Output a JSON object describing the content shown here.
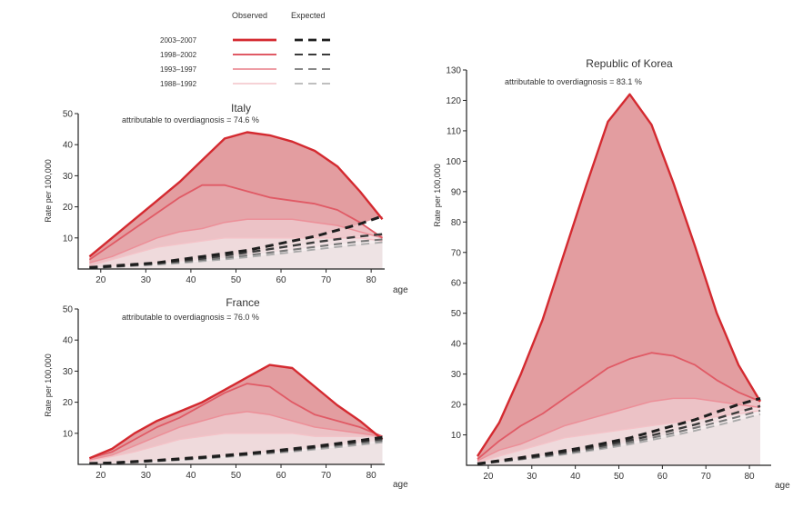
{
  "legend": {
    "observed_label": "Observed",
    "expected_label": "Expected",
    "periods": [
      "2003–2007",
      "1998–2002",
      "1993–1997",
      "1988–1992"
    ],
    "colors": [
      "#d42a30",
      "#e05a65",
      "#ec8f98",
      "#f4c3c8"
    ],
    "expected_colors": [
      "#1e1e1e",
      "#3a3a3a",
      "#777777",
      "#aaaaaa"
    ]
  },
  "chart_data": [
    {
      "type": "area",
      "title": "Italy",
      "annotation": "attributable to overdiagnosis =  74.6 %",
      "ylabel": "Rate per 100,000",
      "xlabel": "age",
      "xlim": [
        15,
        83
      ],
      "ylim": [
        0,
        50
      ],
      "xticks": [
        20,
        30,
        40,
        50,
        60,
        70,
        80
      ],
      "yticks": [
        10,
        20,
        30,
        40,
        50
      ],
      "x": [
        17.5,
        22.5,
        27.5,
        32.5,
        37.5,
        42.5,
        47.5,
        52.5,
        57.5,
        62.5,
        67.5,
        72.5,
        77.5,
        82.5
      ],
      "observed": [
        {
          "name": "2003–2007",
          "values": [
            4,
            10,
            16,
            22,
            28,
            35,
            42,
            44,
            43,
            41,
            38,
            33,
            25,
            16
          ]
        },
        {
          "name": "1998–2002",
          "values": [
            3,
            8,
            13,
            18,
            23,
            27,
            27,
            25,
            23,
            22,
            21,
            19,
            15,
            10
          ]
        },
        {
          "name": "1993–1997",
          "values": [
            2,
            4,
            7,
            10,
            12,
            13,
            15,
            16,
            16,
            16,
            15,
            14,
            12,
            10
          ]
        },
        {
          "name": "1988–1992",
          "values": [
            1,
            3,
            5,
            7,
            8,
            9,
            10,
            10,
            10,
            10,
            10,
            10,
            10,
            9
          ]
        }
      ],
      "expected": [
        {
          "name": "2003–2007",
          "values": [
            0.5,
            1,
            1.5,
            2,
            3,
            4,
            5,
            6,
            7.5,
            9,
            10.5,
            12.5,
            14.5,
            17
          ]
        },
        {
          "name": "1998–2002",
          "values": [
            0.4,
            0.8,
            1.3,
            1.9,
            2.6,
            3.4,
            4.3,
            5.3,
            6.4,
            7.5,
            8.6,
            9.6,
            10.5,
            11.2
          ]
        },
        {
          "name": "1993–1997",
          "values": [
            0.3,
            0.7,
            1.1,
            1.6,
            2.2,
            2.9,
            3.6,
            4.4,
            5.3,
            6.2,
            7.1,
            8,
            8.9,
            9.5
          ]
        },
        {
          "name": "1988–1992",
          "values": [
            0.3,
            0.6,
            1,
            1.4,
            1.9,
            2.5,
            3.1,
            3.8,
            4.6,
            5.4,
            6.3,
            7.1,
            7.9,
            8.6
          ]
        }
      ]
    },
    {
      "type": "area",
      "title": "France",
      "annotation": "attributable to overdiagnosis =  76.0 %",
      "ylabel": "Rate per 100,000",
      "xlabel": "age",
      "xlim": [
        15,
        83
      ],
      "ylim": [
        0,
        50
      ],
      "xticks": [
        20,
        30,
        40,
        50,
        60,
        70,
        80
      ],
      "yticks": [
        10,
        20,
        30,
        40,
        50
      ],
      "x": [
        17.5,
        22.5,
        27.5,
        32.5,
        37.5,
        42.5,
        47.5,
        52.5,
        57.5,
        62.5,
        67.5,
        72.5,
        77.5,
        82.5
      ],
      "observed": [
        {
          "name": "2003–2007",
          "values": [
            2,
            5,
            10,
            14,
            17,
            20,
            24,
            28,
            32,
            31,
            25,
            19,
            14,
            8
          ]
        },
        {
          "name": "1998–2002",
          "values": [
            2,
            4,
            8,
            12,
            15,
            19,
            23,
            26,
            25,
            20,
            16,
            14,
            12,
            9
          ]
        },
        {
          "name": "1993–1997",
          "values": [
            1.5,
            3,
            6,
            9,
            12,
            14,
            16,
            17,
            16,
            14,
            12,
            11,
            10,
            9
          ]
        },
        {
          "name": "1988–1992",
          "values": [
            1,
            2.5,
            4,
            6,
            8,
            9,
            10,
            10,
            10,
            10,
            9,
            9,
            9,
            9
          ]
        }
      ],
      "expected": [
        {
          "name": "2003–2007",
          "values": [
            0.3,
            0.5,
            0.9,
            1.3,
            1.8,
            2.3,
            2.9,
            3.5,
            4.2,
            5,
            5.8,
            6.7,
            7.7,
            8.7
          ]
        },
        {
          "name": "1998–2002",
          "values": [
            0.3,
            0.5,
            0.8,
            1.2,
            1.6,
            2.1,
            2.7,
            3.3,
            4,
            4.7,
            5.5,
            6.4,
            7.3,
            8.2
          ]
        },
        {
          "name": "1993–1997",
          "values": [
            0.2,
            0.4,
            0.7,
            1.1,
            1.5,
            2,
            2.5,
            3.1,
            3.7,
            4.4,
            5.2,
            6,
            6.8,
            7.6
          ]
        },
        {
          "name": "1988–1992",
          "values": [
            0.2,
            0.4,
            0.6,
            1,
            1.4,
            1.8,
            2.3,
            2.9,
            3.5,
            4.1,
            4.8,
            5.5,
            6.3,
            7.1
          ]
        }
      ]
    },
    {
      "type": "area",
      "title": "Republic of Korea",
      "annotation": "attributable to overdiagnosis =  83.1 %",
      "ylabel": "Rate per 100,000",
      "xlabel": "age",
      "xlim": [
        15,
        85
      ],
      "ylim": [
        0,
        130
      ],
      "xticks": [
        20,
        30,
        40,
        50,
        60,
        70,
        80
      ],
      "yticks": [
        10,
        20,
        30,
        40,
        50,
        60,
        70,
        80,
        90,
        100,
        110,
        120,
        130
      ],
      "x": [
        17.5,
        22.5,
        27.5,
        32.5,
        37.5,
        42.5,
        47.5,
        52.5,
        57.5,
        62.5,
        67.5,
        72.5,
        77.5,
        82.5
      ],
      "observed": [
        {
          "name": "2003–2007",
          "values": [
            3,
            14,
            30,
            48,
            70,
            92,
            113,
            122,
            112,
            93,
            72,
            50,
            33,
            21
          ]
        },
        {
          "name": "1998–2002",
          "values": [
            2,
            8,
            13,
            17,
            22,
            27,
            32,
            35,
            37,
            36,
            33,
            28,
            24,
            21
          ]
        },
        {
          "name": "1993–1997",
          "values": [
            1.5,
            5,
            7,
            10,
            13,
            15,
            17,
            19,
            21,
            22,
            22,
            21,
            20,
            19
          ]
        },
        {
          "name": "1988–1992",
          "values": [
            1,
            3,
            5,
            7,
            9,
            10,
            11,
            12,
            13,
            14,
            15,
            16,
            17,
            18
          ]
        }
      ],
      "expected": [
        {
          "name": "2003–2007",
          "values": [
            0.5,
            1.5,
            2.5,
            3.6,
            4.8,
            6,
            7.5,
            9,
            11,
            13,
            15,
            17.5,
            20,
            22
          ]
        },
        {
          "name": "1998–2002",
          "values": [
            0.4,
            1.3,
            2.2,
            3.2,
            4.3,
            5.5,
            6.8,
            8.2,
            9.8,
            11.6,
            13.4,
            15.4,
            17.5,
            19.5
          ]
        },
        {
          "name": "1993–1997",
          "values": [
            0.4,
            1.2,
            2,
            2.9,
            3.9,
            5,
            6.2,
            7.5,
            9,
            10.6,
            12.3,
            14.1,
            16,
            18
          ]
        },
        {
          "name": "1988–1992",
          "values": [
            0.3,
            1.1,
            1.9,
            2.7,
            3.6,
            4.6,
            5.7,
            6.9,
            8.3,
            9.8,
            11.4,
            13.1,
            14.9,
            16.8
          ]
        }
      ]
    }
  ]
}
